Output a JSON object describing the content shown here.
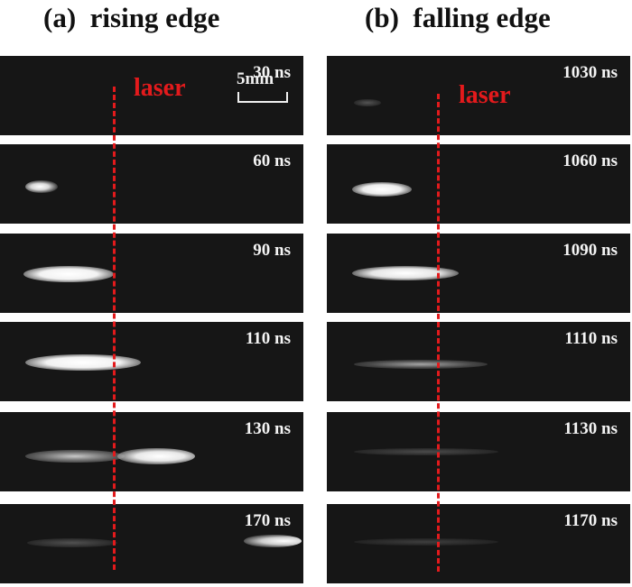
{
  "columns": [
    {
      "title": "(a)  rising edge",
      "panels": [
        {
          "label": "30 ns",
          "streak": null
        },
        {
          "label": "60 ns",
          "streak": "glow-small"
        },
        {
          "label": "90 ns",
          "streak": "bright-medium"
        },
        {
          "label": "110 ns",
          "streak": "bright-long"
        },
        {
          "label": "130 ns",
          "streak": "bright-extended"
        },
        {
          "label": "170 ns",
          "streak": "faint-right"
        }
      ],
      "laser_label": "laser",
      "scale_label": "5mm"
    },
    {
      "title": "(b)  falling edge",
      "panels": [
        {
          "label": "1030 ns",
          "streak": null
        },
        {
          "label": "1060 ns",
          "streak": "bright-short"
        },
        {
          "label": "1090 ns",
          "streak": "bright-medium"
        },
        {
          "label": "1110 ns",
          "streak": "faint-medium"
        },
        {
          "label": "1130 ns",
          "streak": "very-faint"
        },
        {
          "label": "1170 ns",
          "streak": "very-faint"
        }
      ],
      "laser_label": "laser"
    }
  ],
  "colors": {
    "background": "#161616",
    "laser": "#e31a1c",
    "text": "#f4f4f4"
  }
}
